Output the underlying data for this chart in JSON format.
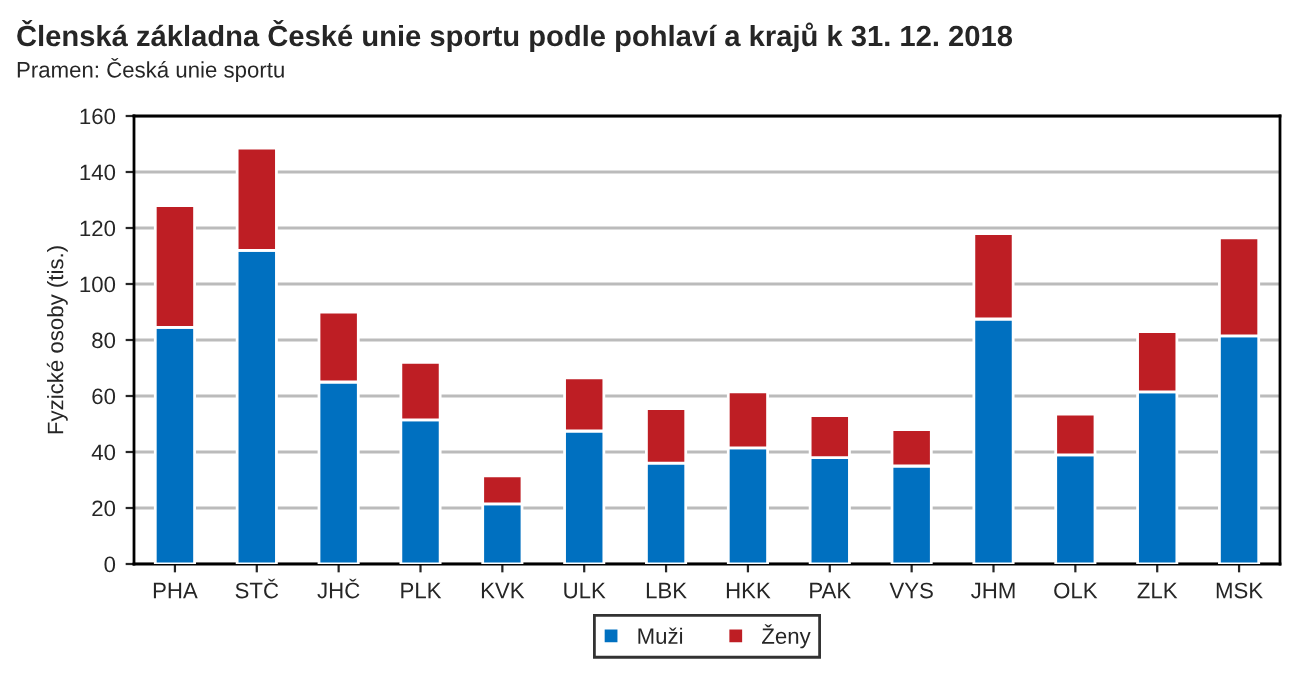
{
  "chart_data": {
    "type": "bar",
    "title": "Členská základna České unie sportu podle pohlaví a krajů k 31. 12. 2018",
    "subtitle": "Pramen: Česká unie sportu",
    "ylabel": "Fyzické osoby (tis.)",
    "categories": [
      "PHA",
      "STČ",
      "JHČ",
      "PLK",
      "KVK",
      "ULK",
      "LBK",
      "HKK",
      "PAK",
      "VYS",
      "JHM",
      "OLK",
      "ZLK",
      "MSK"
    ],
    "stacked": true,
    "series": [
      {
        "name": "Muži",
        "color": "#0070c0",
        "values": [
          84.5,
          112,
          65,
          51.5,
          21.5,
          47.5,
          36,
          41.5,
          38,
          35,
          87.5,
          39,
          61.5,
          81.5
        ]
      },
      {
        "name": "Ženy",
        "color": "#be1e24",
        "values": [
          43.5,
          36.5,
          25,
          20.5,
          10,
          19,
          19.5,
          20,
          15,
          13,
          30.5,
          14.5,
          21.5,
          35
        ]
      }
    ],
    "ylim": [
      0,
      160
    ],
    "yticks": [
      0,
      20,
      40,
      60,
      80,
      100,
      120,
      140,
      160
    ],
    "grid": "y",
    "legend": "bottom"
  }
}
